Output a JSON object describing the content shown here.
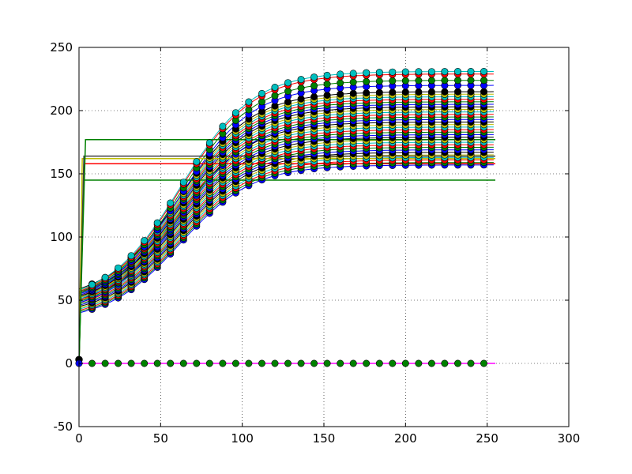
{
  "chart_data": {
    "type": "line",
    "title": "",
    "xlabel": "",
    "ylabel": "",
    "xlim": [
      0,
      300
    ],
    "ylim": [
      -50,
      250
    ],
    "x_ticks": [
      0,
      50,
      100,
      150,
      200,
      250,
      300
    ],
    "y_ticks": [
      -50,
      0,
      50,
      100,
      150,
      200,
      250
    ],
    "grid": true,
    "legend": false,
    "colors": [
      "#0000ff",
      "#008000",
      "#ff0000",
      "#00bfbf",
      "#bfbf00",
      "#000000"
    ],
    "sample_x": [
      0,
      8,
      16,
      24,
      32,
      40,
      48,
      56,
      64,
      72,
      80,
      88,
      96,
      104,
      112,
      120,
      128,
      136,
      144,
      152,
      160,
      168,
      176,
      184,
      192,
      200,
      208,
      216,
      224,
      232,
      240,
      248
    ],
    "baseline_series": {
      "value": 0,
      "marker_color": "#008000",
      "line_color": "#ff00ff"
    },
    "saturating_series": [
      {
        "top": 145,
        "jump_x": 3
      },
      {
        "top": 158,
        "jump_x": 3
      },
      {
        "top": 162,
        "jump_x": 2
      },
      {
        "top": 164,
        "jump_x": 3
      },
      {
        "top": 177,
        "jump_x": 4
      }
    ],
    "logistic_curves": [
      {
        "start": 40,
        "plateau": 157
      },
      {
        "start": 41,
        "plateau": 159
      },
      {
        "start": 42,
        "plateau": 161
      },
      {
        "start": 43,
        "plateau": 163
      },
      {
        "start": 44,
        "plateau": 165
      },
      {
        "start": 45,
        "plateau": 167
      },
      {
        "start": 46,
        "plateau": 169
      },
      {
        "start": 47,
        "plateau": 171
      },
      {
        "start": 48,
        "plateau": 173
      },
      {
        "start": 49,
        "plateau": 175
      },
      {
        "start": 50,
        "plateau": 177
      },
      {
        "start": 51,
        "plateau": 179
      },
      {
        "start": 52,
        "plateau": 181
      },
      {
        "start": 53,
        "plateau": 183
      },
      {
        "start": 54,
        "plateau": 185
      },
      {
        "start": 55,
        "plateau": 187
      },
      {
        "start": 56,
        "plateau": 189
      },
      {
        "start": 57,
        "plateau": 191
      },
      {
        "start": 48,
        "plateau": 193
      },
      {
        "start": 49,
        "plateau": 195
      },
      {
        "start": 50,
        "plateau": 197
      },
      {
        "start": 51,
        "plateau": 199
      },
      {
        "start": 52,
        "plateau": 201
      },
      {
        "start": 53,
        "plateau": 203
      },
      {
        "start": 54,
        "plateau": 205
      },
      {
        "start": 55,
        "plateau": 207
      },
      {
        "start": 56,
        "plateau": 209
      },
      {
        "start": 57,
        "plateau": 211
      },
      {
        "start": 58,
        "plateau": 213
      },
      {
        "start": 59,
        "plateau": 215
      },
      {
        "start": 55,
        "plateau": 220
      },
      {
        "start": 56,
        "plateau": 224
      },
      {
        "start": 57,
        "plateau": 229
      },
      {
        "start": 58,
        "plateau": 231
      }
    ]
  }
}
